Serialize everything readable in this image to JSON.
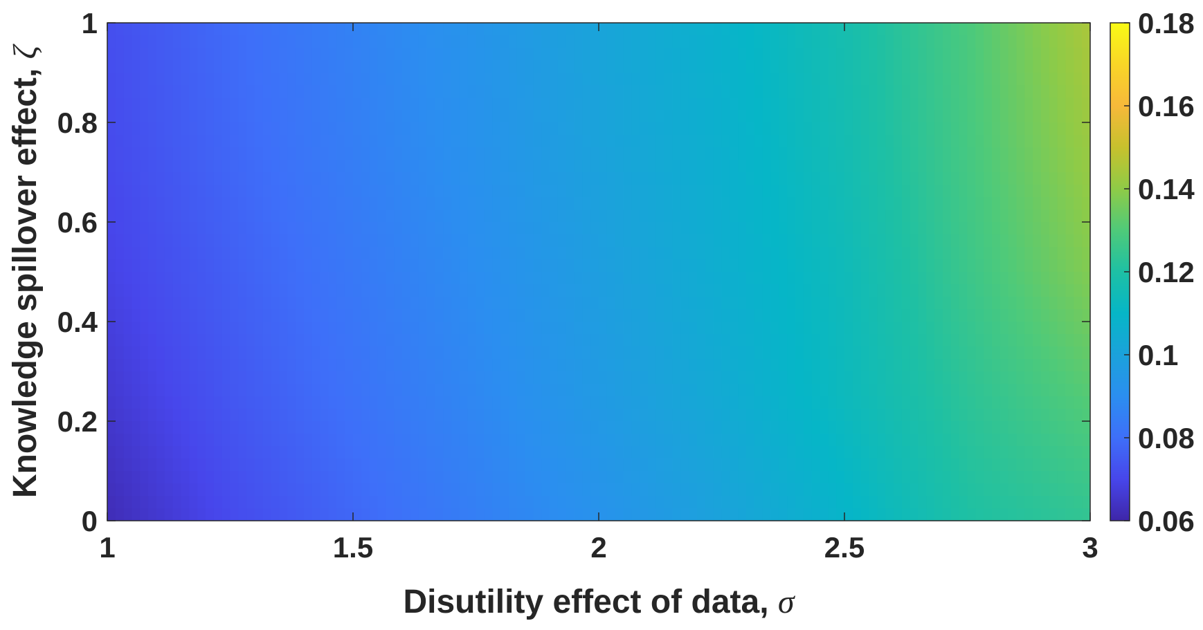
{
  "chart_data": {
    "type": "heatmap",
    "title": "",
    "xlabel": "Disutility effect of data, ",
    "xlabel_symbol": "σ",
    "ylabel": "Knowledge spillover effect, ",
    "ylabel_symbol": "ζ",
    "xlim": [
      1,
      3
    ],
    "ylim": [
      0,
      1
    ],
    "xticks": [
      1,
      1.5,
      2,
      2.5,
      3
    ],
    "xtick_labels": [
      "1",
      "1.5",
      "2",
      "2.5",
      "3"
    ],
    "yticks": [
      0,
      0.2,
      0.4,
      0.6,
      0.8,
      1
    ],
    "ytick_labels": [
      "0",
      "0.2",
      "0.4",
      "0.6",
      "0.8",
      "1"
    ],
    "colorbar": {
      "range": [
        0.06,
        0.18
      ],
      "ticks": [
        0.06,
        0.08,
        0.1,
        0.12,
        0.14,
        0.16,
        0.18
      ],
      "tick_labels": [
        "0.06",
        "0.08",
        "0.1",
        "0.12",
        "0.14",
        "0.16",
        "0.18"
      ],
      "colormap": "parula",
      "colormap_stops": [
        "#3e26a8",
        "#4746eb",
        "#3e6ff9",
        "#2b8ef0",
        "#1ba2db",
        "#06b6c7",
        "#1ec0a4",
        "#4fca79",
        "#8fcb47",
        "#c7c12d",
        "#f7b93a",
        "#f9d627",
        "#f9fb15"
      ]
    },
    "x": [
      1.0,
      1.25,
      1.5,
      1.75,
      2.0,
      2.25,
      2.5,
      2.75,
      3.0
    ],
    "y": [
      0.0,
      0.25,
      0.5,
      0.75,
      1.0
    ],
    "z": [
      [
        0.062,
        0.071,
        0.078,
        0.085,
        0.092,
        0.1,
        0.109,
        0.12,
        0.124
      ],
      [
        0.066,
        0.074,
        0.081,
        0.088,
        0.096,
        0.104,
        0.113,
        0.123,
        0.131
      ],
      [
        0.069,
        0.076,
        0.083,
        0.09,
        0.098,
        0.106,
        0.114,
        0.126,
        0.138
      ],
      [
        0.071,
        0.078,
        0.085,
        0.092,
        0.1,
        0.107,
        0.116,
        0.128,
        0.142
      ],
      [
        0.072,
        0.079,
        0.086,
        0.093,
        0.101,
        0.108,
        0.117,
        0.129,
        0.145
      ]
    ],
    "grid": false,
    "legend": "none"
  }
}
